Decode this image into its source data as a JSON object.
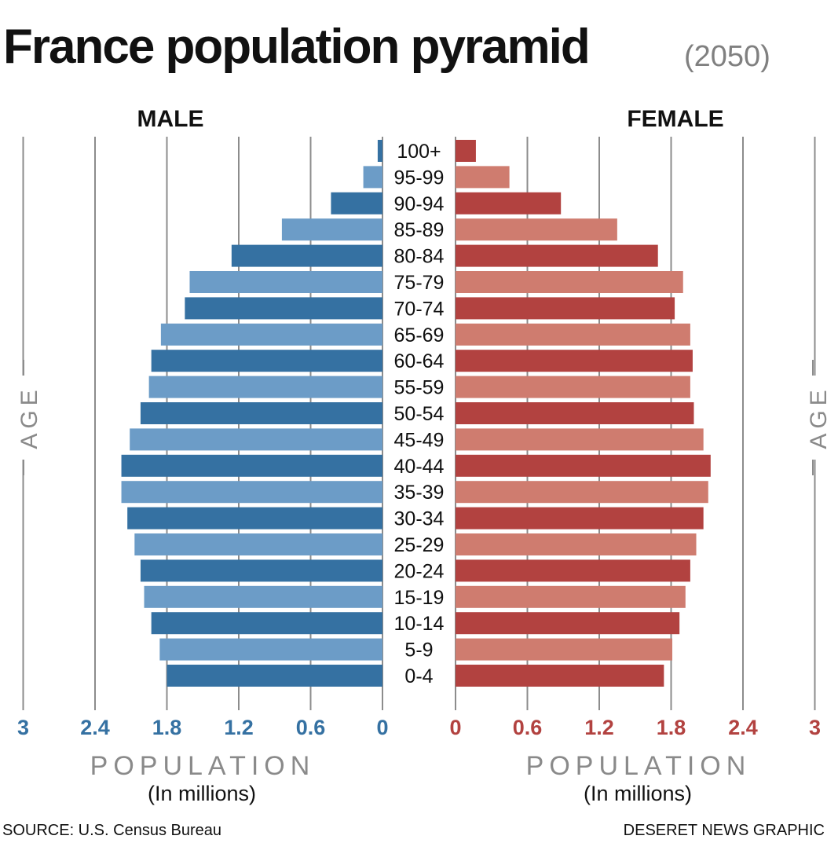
{
  "chart_data": {
    "type": "population-pyramid",
    "title": "France population pyramid",
    "subtitle": "(2050)",
    "left_label": "MALE",
    "right_label": "FEMALE",
    "age_axis_label": "AGE",
    "x_axis": {
      "title": "POPULATION",
      "unit": "(In millions)",
      "ticks": [
        "3",
        "2.4",
        "1.8",
        "1.2",
        "0.6",
        "0"
      ],
      "right_ticks": [
        "0",
        "0.6",
        "1.2",
        "1.8",
        "2.4",
        "3"
      ],
      "xlim": [
        0,
        3
      ],
      "grid": true
    },
    "categories": [
      "100+",
      "95-99",
      "90-94",
      "85-89",
      "80-84",
      "75-79",
      "70-74",
      "65-69",
      "60-64",
      "55-59",
      "50-54",
      "45-49",
      "40-44",
      "35-39",
      "30-34",
      "25-29",
      "20-24",
      "15-19",
      "10-14",
      "5-9",
      "0-4"
    ],
    "series": [
      {
        "name": "MALE",
        "values": [
          0.04,
          0.16,
          0.43,
          0.84,
          1.26,
          1.61,
          1.65,
          1.85,
          1.93,
          1.95,
          2.02,
          2.11,
          2.18,
          2.18,
          2.13,
          2.07,
          2.02,
          1.99,
          1.93,
          1.86,
          1.8
        ]
      },
      {
        "name": "FEMALE",
        "values": [
          0.17,
          0.45,
          0.88,
          1.35,
          1.69,
          1.9,
          1.83,
          1.96,
          1.98,
          1.96,
          1.99,
          2.07,
          2.13,
          2.11,
          2.07,
          2.01,
          1.96,
          1.92,
          1.87,
          1.81,
          1.74
        ]
      }
    ]
  },
  "colors": {
    "male_dark": "#3571a2",
    "male_light": "#6c9cc7",
    "female_dark": "#b24240",
    "female_light": "#cf7c6f",
    "male_tick": "#3571a2",
    "female_tick": "#b24240",
    "grid": "#8c8c8c"
  },
  "footer": {
    "source": "SOURCE: U.S. Census Bureau",
    "credit": "DESERET NEWS GRAPHIC"
  }
}
